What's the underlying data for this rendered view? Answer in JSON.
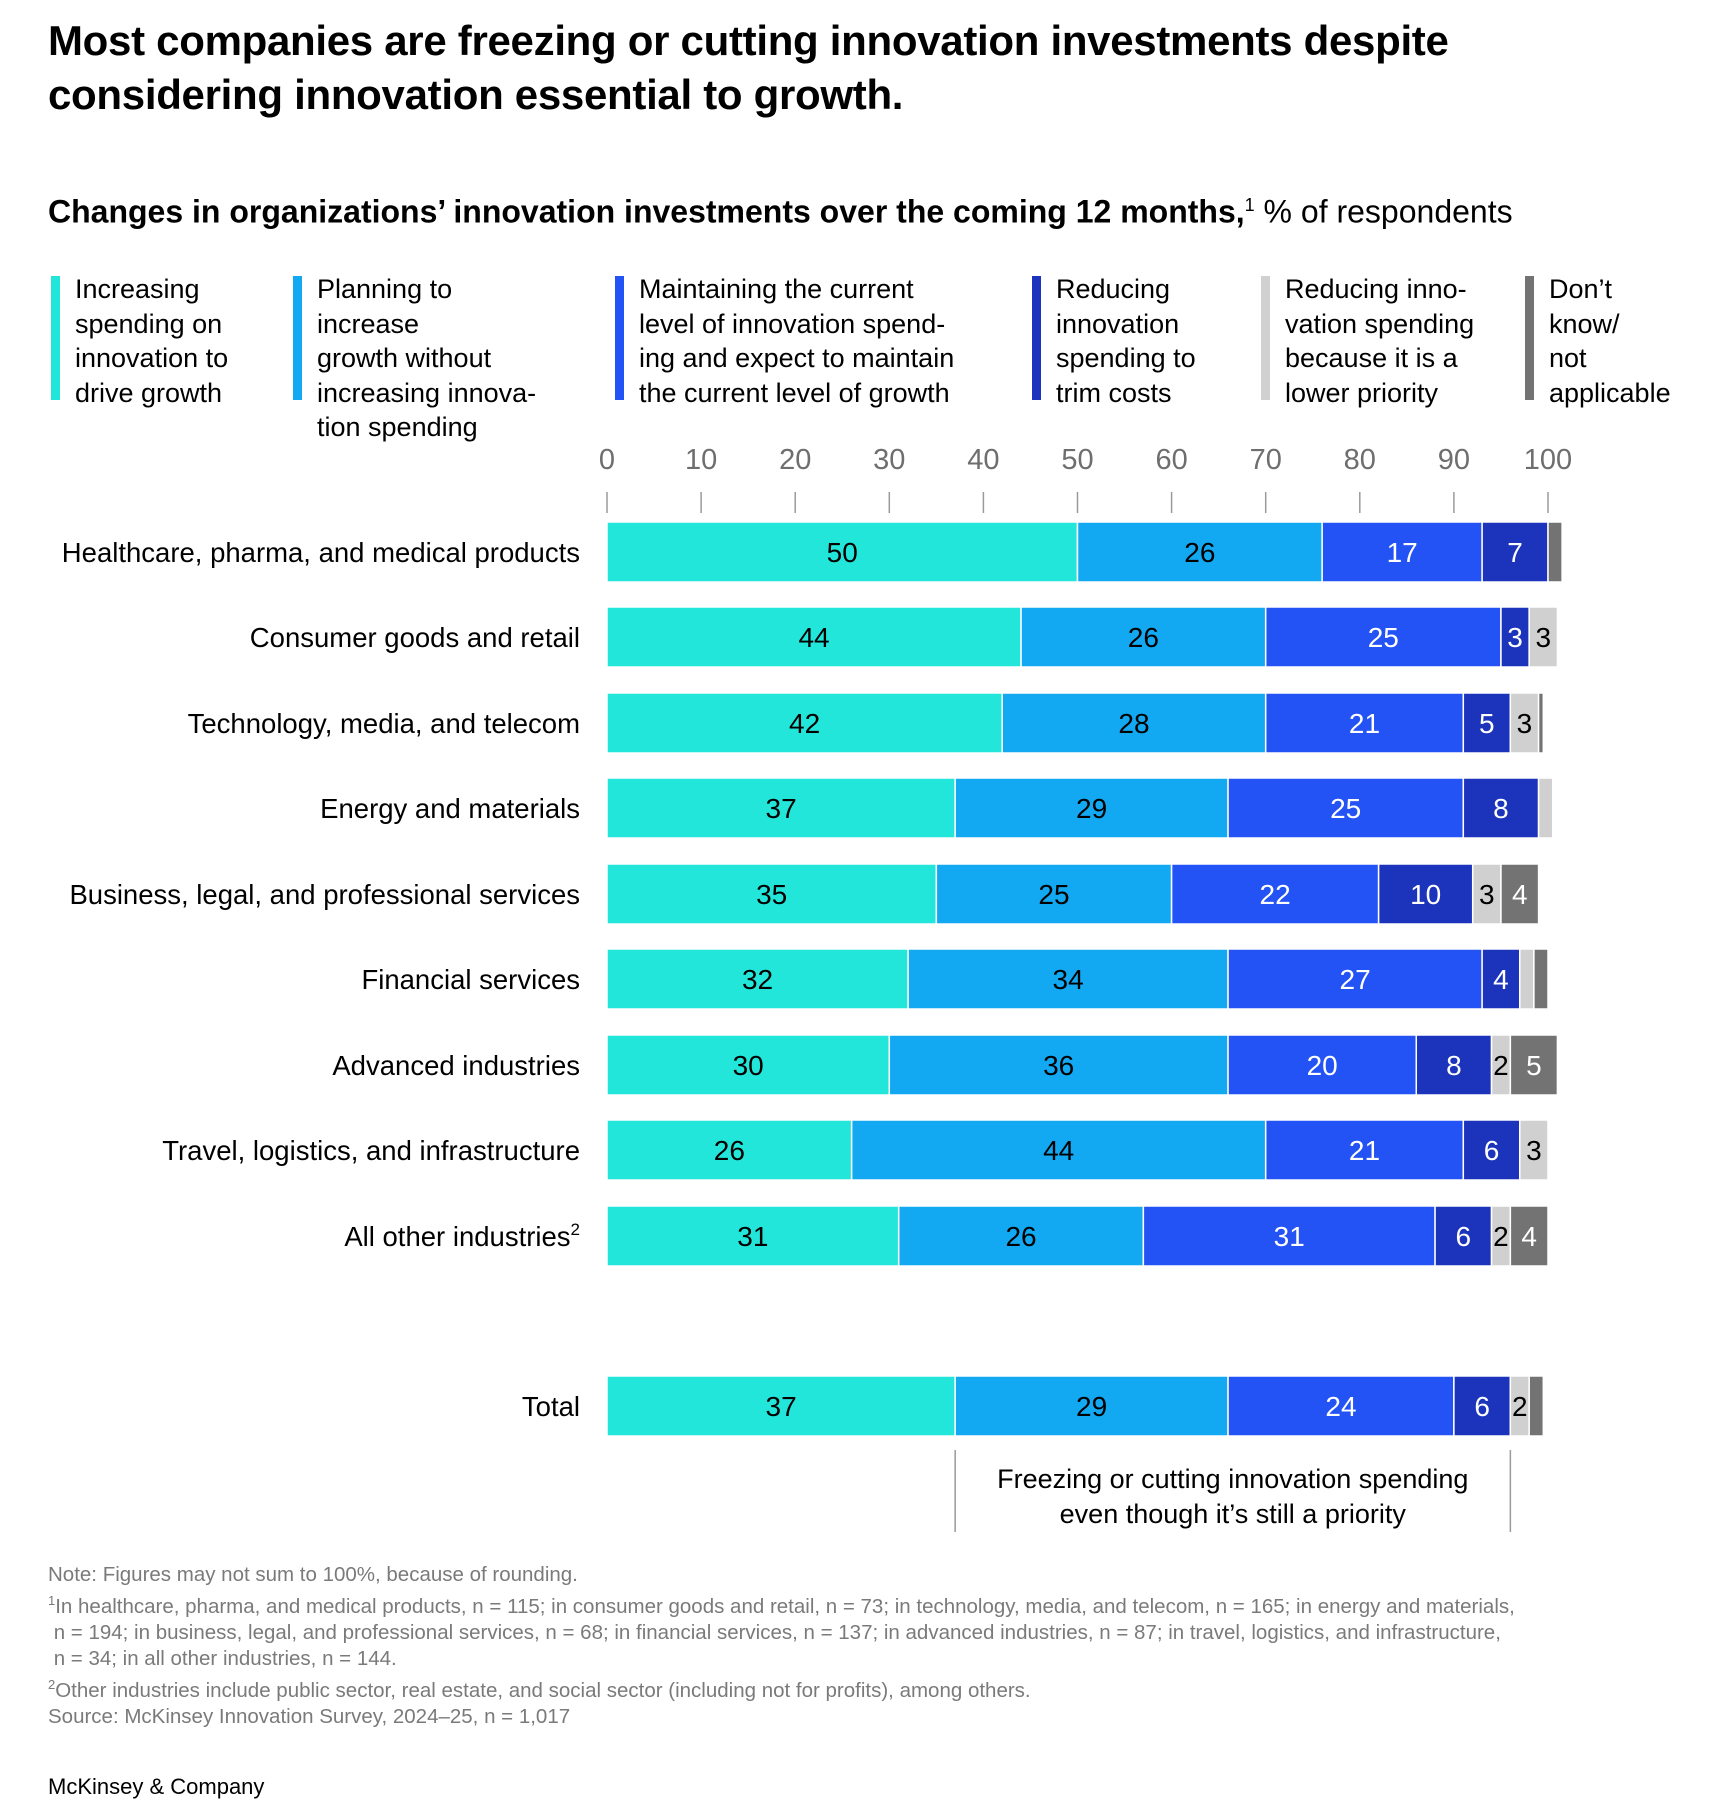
{
  "title": "Most companies are freezing or cutting innovation investments despite considering innovation essential to growth.",
  "subtitle": {
    "bold": "Changes in organizations’ innovation investments over the coming 12 months,",
    "sup": "1",
    "rest": " % of respondents"
  },
  "legend": [
    {
      "label": "Increasing\nspending on\ninnovation to\ndrive growth",
      "color": "#23E6DB"
    },
    {
      "label": "Planning to increase\ngrowth without\nincreasing innova-\ntion spending",
      "color": "#12A8F2"
    },
    {
      "label": "Maintaining the current\nlevel of innovation spend-\ning and expect to maintain\nthe current level of growth",
      "color": "#2352F5"
    },
    {
      "label": "Reducing\ninnovation\nspending to\ntrim costs",
      "color": "#1B34BB"
    },
    {
      "label": "Reducing inno-\nvation spending\nbecause it is a\nlower priority",
      "color": "#D0D0D0"
    },
    {
      "label": "Don’t\nknow/\nnot\napplicable",
      "color": "#737373"
    }
  ],
  "chart_data": {
    "type": "bar",
    "orientation": "horizontal",
    "stacked": true,
    "xlim": [
      0,
      100
    ],
    "xticks": [
      "0",
      "10",
      "20",
      "30",
      "40",
      "50",
      "60",
      "70",
      "80",
      "90",
      "100"
    ],
    "series_names": [
      "Increasing spending on innovation to drive growth",
      "Planning to increase growth without increasing innovation spending",
      "Maintaining the current level of innovation spending and expect to maintain the current level of growth",
      "Reducing innovation spending to trim costs",
      "Reducing innovation spending because it is a lower priority",
      "Don’t know/not applicable"
    ],
    "rows": [
      {
        "label": "Healthcare, pharma, and medical products",
        "sup": "",
        "values": [
          50,
          26,
          17,
          7,
          0,
          1.5
        ],
        "labels": [
          "50",
          "26",
          "17",
          "7",
          "",
          ""
        ]
      },
      {
        "label": "Consumer goods and retail",
        "sup": "",
        "values": [
          44,
          26,
          25,
          3,
          3,
          0
        ],
        "labels": [
          "44",
          "26",
          "25",
          "3",
          "3",
          ""
        ]
      },
      {
        "label": "Technology, media, and telecom",
        "sup": "",
        "values": [
          42,
          28,
          21,
          5,
          3,
          0.5
        ],
        "labels": [
          "42",
          "28",
          "21",
          "5",
          "3",
          ""
        ]
      },
      {
        "label": "Energy and materials",
        "sup": "",
        "values": [
          37,
          29,
          25,
          8,
          1.5,
          0
        ],
        "labels": [
          "37",
          "29",
          "25",
          "8",
          "",
          ""
        ]
      },
      {
        "label": "Business, legal, and professional services",
        "sup": "",
        "values": [
          35,
          25,
          22,
          10,
          3,
          4
        ],
        "labels": [
          "35",
          "25",
          "22",
          "10",
          "3",
          "4"
        ]
      },
      {
        "label": "Financial services",
        "sup": "",
        "values": [
          32,
          34,
          27,
          4,
          1.5,
          1.5
        ],
        "labels": [
          "32",
          "34",
          "27",
          "4",
          "",
          ""
        ]
      },
      {
        "label": "Advanced industries",
        "sup": "",
        "values": [
          30,
          36,
          20,
          8,
          2,
          5
        ],
        "labels": [
          "30",
          "36",
          "20",
          "8",
          "2",
          "5"
        ]
      },
      {
        "label": "Travel, logistics, and infrastructure",
        "sup": "",
        "values": [
          26,
          44,
          21,
          6,
          3,
          0
        ],
        "labels": [
          "26",
          "44",
          "21",
          "6",
          "3",
          ""
        ]
      },
      {
        "label": "All other industries",
        "sup": "2",
        "values": [
          31,
          26,
          31,
          6,
          2,
          4
        ],
        "labels": [
          "31",
          "26",
          "31",
          "6",
          "2",
          "4"
        ]
      }
    ],
    "total": {
      "label": "Total",
      "sup": "",
      "values": [
        37,
        29,
        24,
        6,
        2,
        1.5
      ],
      "labels": [
        "37",
        "29",
        "24",
        "6",
        "2",
        ""
      ]
    },
    "annotation": "Freezing or cutting innovation spending\neven though it’s still a priority",
    "label_text_colors": [
      "#000000",
      "#000000",
      "#ffffff",
      "#ffffff",
      "#000000",
      "#ffffff"
    ]
  },
  "notes": {
    "note": "Note: Figures may not sum to 100%, because of rounding.",
    "fn1_sup": "1",
    "fn1": "In healthcare, pharma, and medical products, n = 115; in consumer goods and retail, n = 73; in technology, media, and telecom, n = 165; in energy and materials,\n n = 194; in business, legal, and professional services, n = 68; in financial services, n = 137; in advanced industries, n = 87; in travel, logistics, and infrastructure,\n n = 34; in all other industries, n = 144.",
    "fn2_sup": "2",
    "fn2": "Other industries include public sector, real estate, and social sector (including not for profits), among others.",
    "source": "Source: McKinsey Innovation Survey, 2024–25, n = 1,017"
  },
  "brand": "McKinsey & Company"
}
